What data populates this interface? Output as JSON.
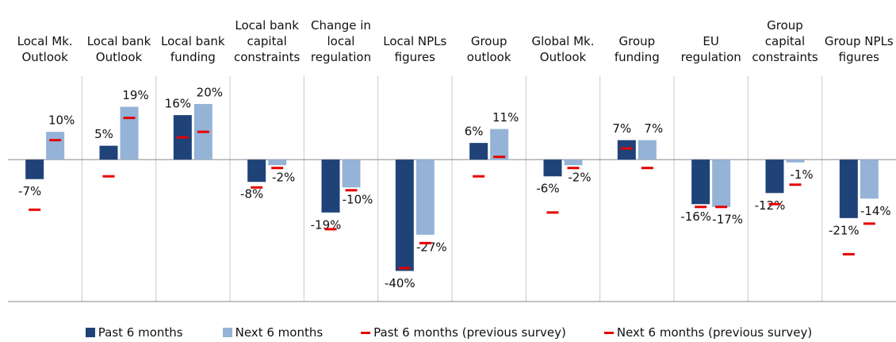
{
  "chart_data": {
    "type": "bar",
    "categories": [
      "Local Mk. Outlook",
      "Local bank Outlook",
      "Local bank funding",
      "Local bank capital constraints",
      "Change in local regulation",
      "Local NPLs figures",
      "Group outlook",
      "Global Mk. Outlook",
      "Group funding",
      "EU regulation",
      "Group capital constraints",
      "Group NPLs figures"
    ],
    "ylim": [
      -51,
      30
    ],
    "series": [
      {
        "name": "Past 6 months",
        "kind": "bar",
        "color": "#1f4279",
        "values": [
          -7,
          5,
          16,
          -8,
          -19,
          -40,
          6,
          -6,
          7,
          -16,
          -12,
          -21
        ],
        "value_labels": [
          "-7%",
          "5%",
          "16%",
          "-8%",
          "-19%",
          "-40%",
          "6%",
          "-6%",
          "7%",
          "-16%",
          "-12%",
          "-21%"
        ]
      },
      {
        "name": "Next 6 months",
        "kind": "bar",
        "color": "#95b3d7",
        "values": [
          10,
          19,
          20,
          -2,
          -10,
          -27,
          11,
          -2,
          7,
          -17,
          -1,
          -14
        ],
        "value_labels": [
          "10%",
          "19%",
          "20%",
          "-2%",
          "-10%",
          "-27%",
          "11%",
          "-2%",
          "7%",
          "-17%",
          "-1%",
          "-14%"
        ]
      },
      {
        "name": "Past 6 months (previous survey)",
        "kind": "dash",
        "color": "#e60000",
        "values": [
          -18,
          -6,
          8,
          -10,
          -25,
          -39,
          -6,
          -19,
          4,
          -17,
          -16,
          -34
        ]
      },
      {
        "name": "Next 6 months (previous survey)",
        "kind": "dash",
        "color": "#e60000",
        "values": [
          7,
          15,
          10,
          -3,
          -11,
          -30,
          1,
          -3,
          -3,
          -17,
          -9,
          -23
        ]
      }
    ]
  }
}
